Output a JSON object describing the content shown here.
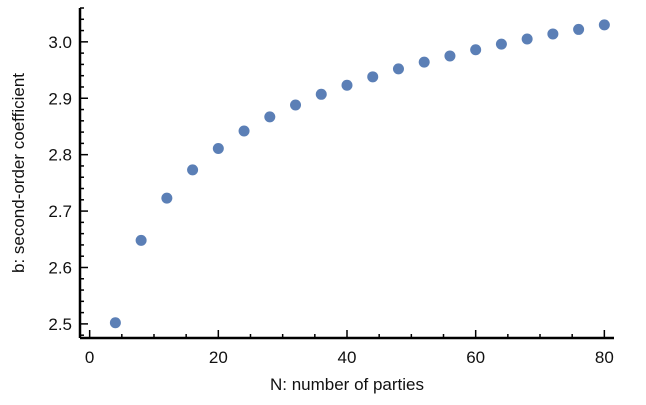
{
  "chart_data": {
    "type": "scatter",
    "title": "",
    "xlabel": "N: number of parties",
    "ylabel": "b: second-order coefficient",
    "xlim": [
      -1.5,
      81.5
    ],
    "ylim": [
      2.475,
      3.06
    ],
    "x_major_ticks": [
      0,
      20,
      40,
      60,
      80
    ],
    "x_tick_labels": [
      "0",
      "20",
      "40",
      "60",
      "80"
    ],
    "x_minor_step": 5,
    "y_major_ticks": [
      2.5,
      2.6,
      2.7,
      2.8,
      2.9,
      3.0
    ],
    "y_tick_labels": [
      "2.5",
      "2.6",
      "2.7",
      "2.8",
      "2.9",
      "3.0"
    ],
    "y_minor_step": 0.02,
    "grid": false,
    "marker_color": "#5b7fb6",
    "series": [
      {
        "x": [
          4,
          8,
          12,
          16,
          20,
          24,
          28,
          32,
          36,
          40,
          44,
          48,
          52,
          56,
          60,
          64,
          68,
          72,
          76,
          80
        ],
        "y": [
          2.502,
          2.648,
          2.723,
          2.773,
          2.811,
          2.842,
          2.867,
          2.888,
          2.907,
          2.923,
          2.938,
          2.952,
          2.964,
          2.975,
          2.986,
          2.996,
          3.005,
          3.014,
          3.022,
          3.03
        ]
      }
    ]
  }
}
